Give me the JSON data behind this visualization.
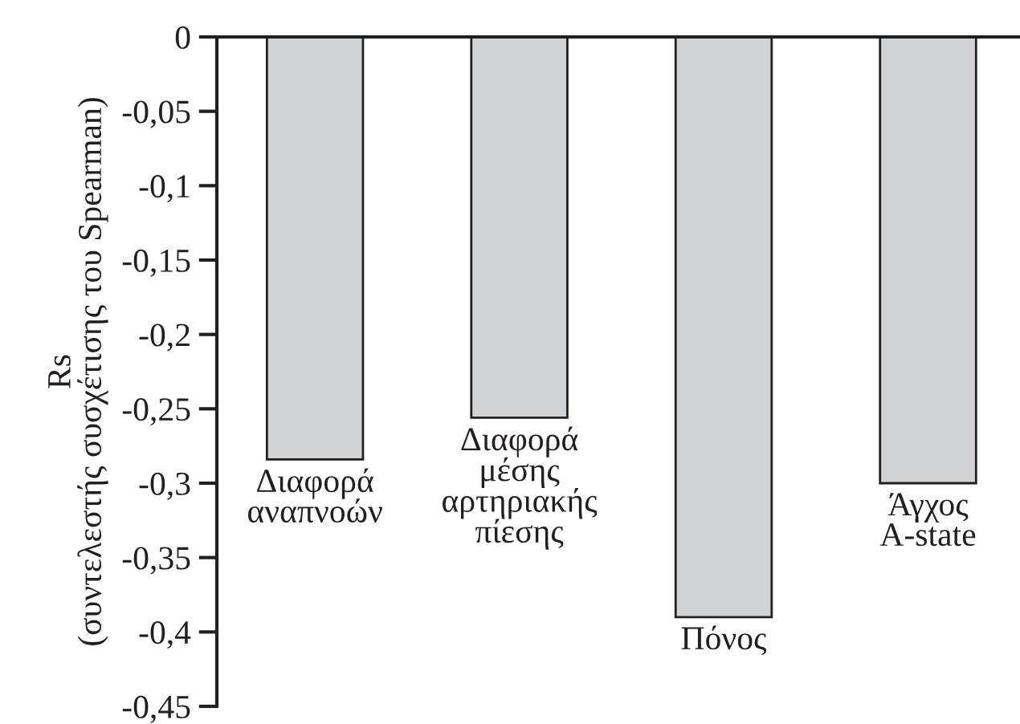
{
  "chart_data": {
    "type": "bar",
    "ylabel": "Rs\n(συντελεστής συσχέτισης του Spearman)",
    "categories": [
      "Διαφορά\nαναπνοών",
      "Διαφορά\nμέσης\nαρτηριακής\nπίεσης",
      "Πόνος",
      "Άγχος\nA-state"
    ],
    "values": [
      -0.284,
      -0.256,
      -0.39,
      -0.3
    ],
    "color": "#d1d2d4",
    "ylim": [
      -0.45,
      0
    ],
    "yticks": [
      {
        "value": 0,
        "label": "0"
      },
      {
        "value": -0.05,
        "label": "-0,05"
      },
      {
        "value": -0.1,
        "label": "-0,1"
      },
      {
        "value": -0.15,
        "label": "-0,15"
      },
      {
        "value": -0.2,
        "label": "-0,2"
      },
      {
        "value": -0.25,
        "label": "-0,25"
      },
      {
        "value": -0.3,
        "label": "-0,3"
      },
      {
        "value": -0.35,
        "label": "-0,35"
      },
      {
        "value": -0.4,
        "label": "-0,4"
      },
      {
        "value": -0.45,
        "label": "-0,45"
      }
    ],
    "grid": false
  }
}
